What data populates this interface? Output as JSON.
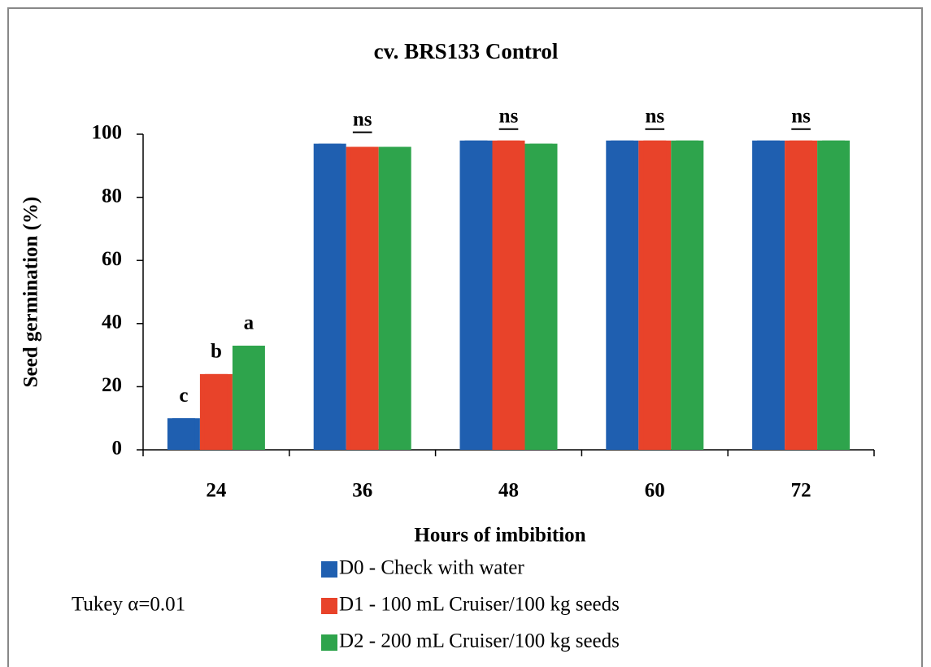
{
  "chart_data": {
    "type": "bar",
    "title": "cv. BRS133 Control",
    "x_label": "Hours of imbibition",
    "y_label": "Seed germination (%)",
    "note": "Tukey α=0.01",
    "categories": [
      "24",
      "36",
      "48",
      "60",
      "72"
    ],
    "series": [
      {
        "name": "D0 - Check with water",
        "color": "#1f5fb0",
        "values": [
          10,
          97,
          98,
          98,
          98
        ],
        "value_labels": [
          "c",
          null,
          null,
          null,
          null
        ]
      },
      {
        "name": "D1 - 100 mL Cruiser/100 kg seeds",
        "color": "#e8432a",
        "values": [
          24,
          96,
          98,
          98,
          98
        ],
        "value_labels": [
          "b",
          null,
          null,
          null,
          null
        ]
      },
      {
        "name": "D2 - 200 mL Cruiser/100 kg seeds",
        "color": "#2ea44c",
        "values": [
          33,
          96,
          97,
          98,
          98
        ],
        "value_labels": [
          "a",
          null,
          null,
          null,
          null
        ]
      }
    ],
    "group_labels": [
      null,
      "ns",
      "ns",
      "ns",
      "ns"
    ],
    "ylim": [
      0,
      100
    ],
    "yticks": [
      0,
      20,
      40,
      60,
      80,
      100
    ],
    "grid": false
  }
}
